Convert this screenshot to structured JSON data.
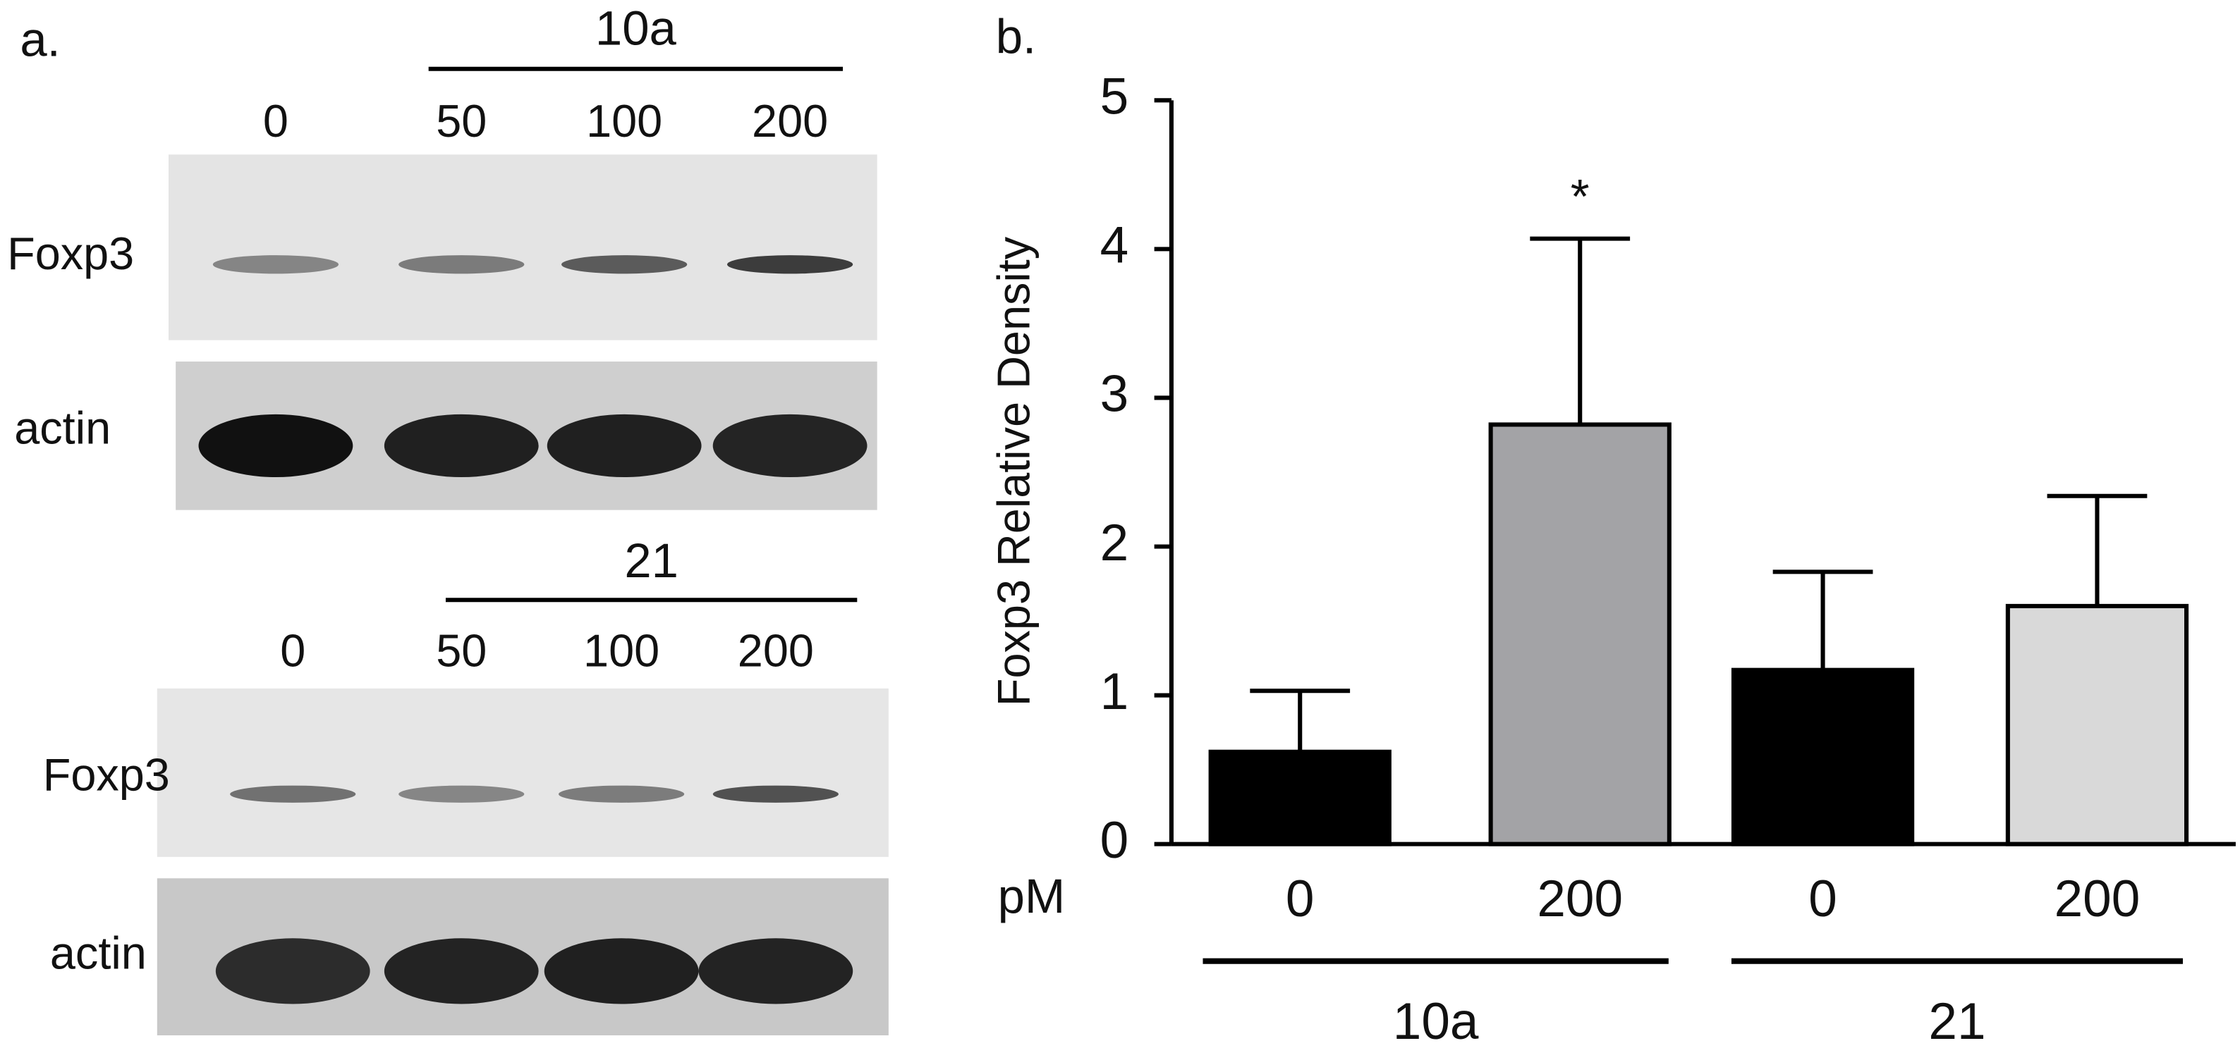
{
  "panel_a": {
    "label": "a.",
    "blots": [
      {
        "group": "10a",
        "lanes": [
          "0",
          "50",
          "100",
          "200"
        ],
        "rows": [
          "Foxp3",
          "actin"
        ]
      },
      {
        "group": "21",
        "lanes": [
          "0",
          "50",
          "100",
          "200"
        ],
        "rows": [
          "Foxp3",
          "actin"
        ]
      }
    ]
  },
  "chart_data": {
    "type": "bar",
    "panel_label": "b.",
    "ylabel": "Foxp3 Relative Density",
    "x_prefix": "pM",
    "categories": [
      "0",
      "200",
      "0",
      "200"
    ],
    "groups": [
      "10a",
      "21"
    ],
    "values": [
      0.62,
      2.82,
      1.17,
      1.6
    ],
    "errors": [
      0.41,
      1.25,
      0.66,
      0.74
    ],
    "colors": [
      "#000000",
      "#a3a3a6",
      "#000000",
      "#d9d9d9"
    ],
    "annotation": "*",
    "ylim": [
      0,
      5
    ],
    "yticks": [
      0,
      1,
      2,
      3,
      4,
      5
    ]
  }
}
